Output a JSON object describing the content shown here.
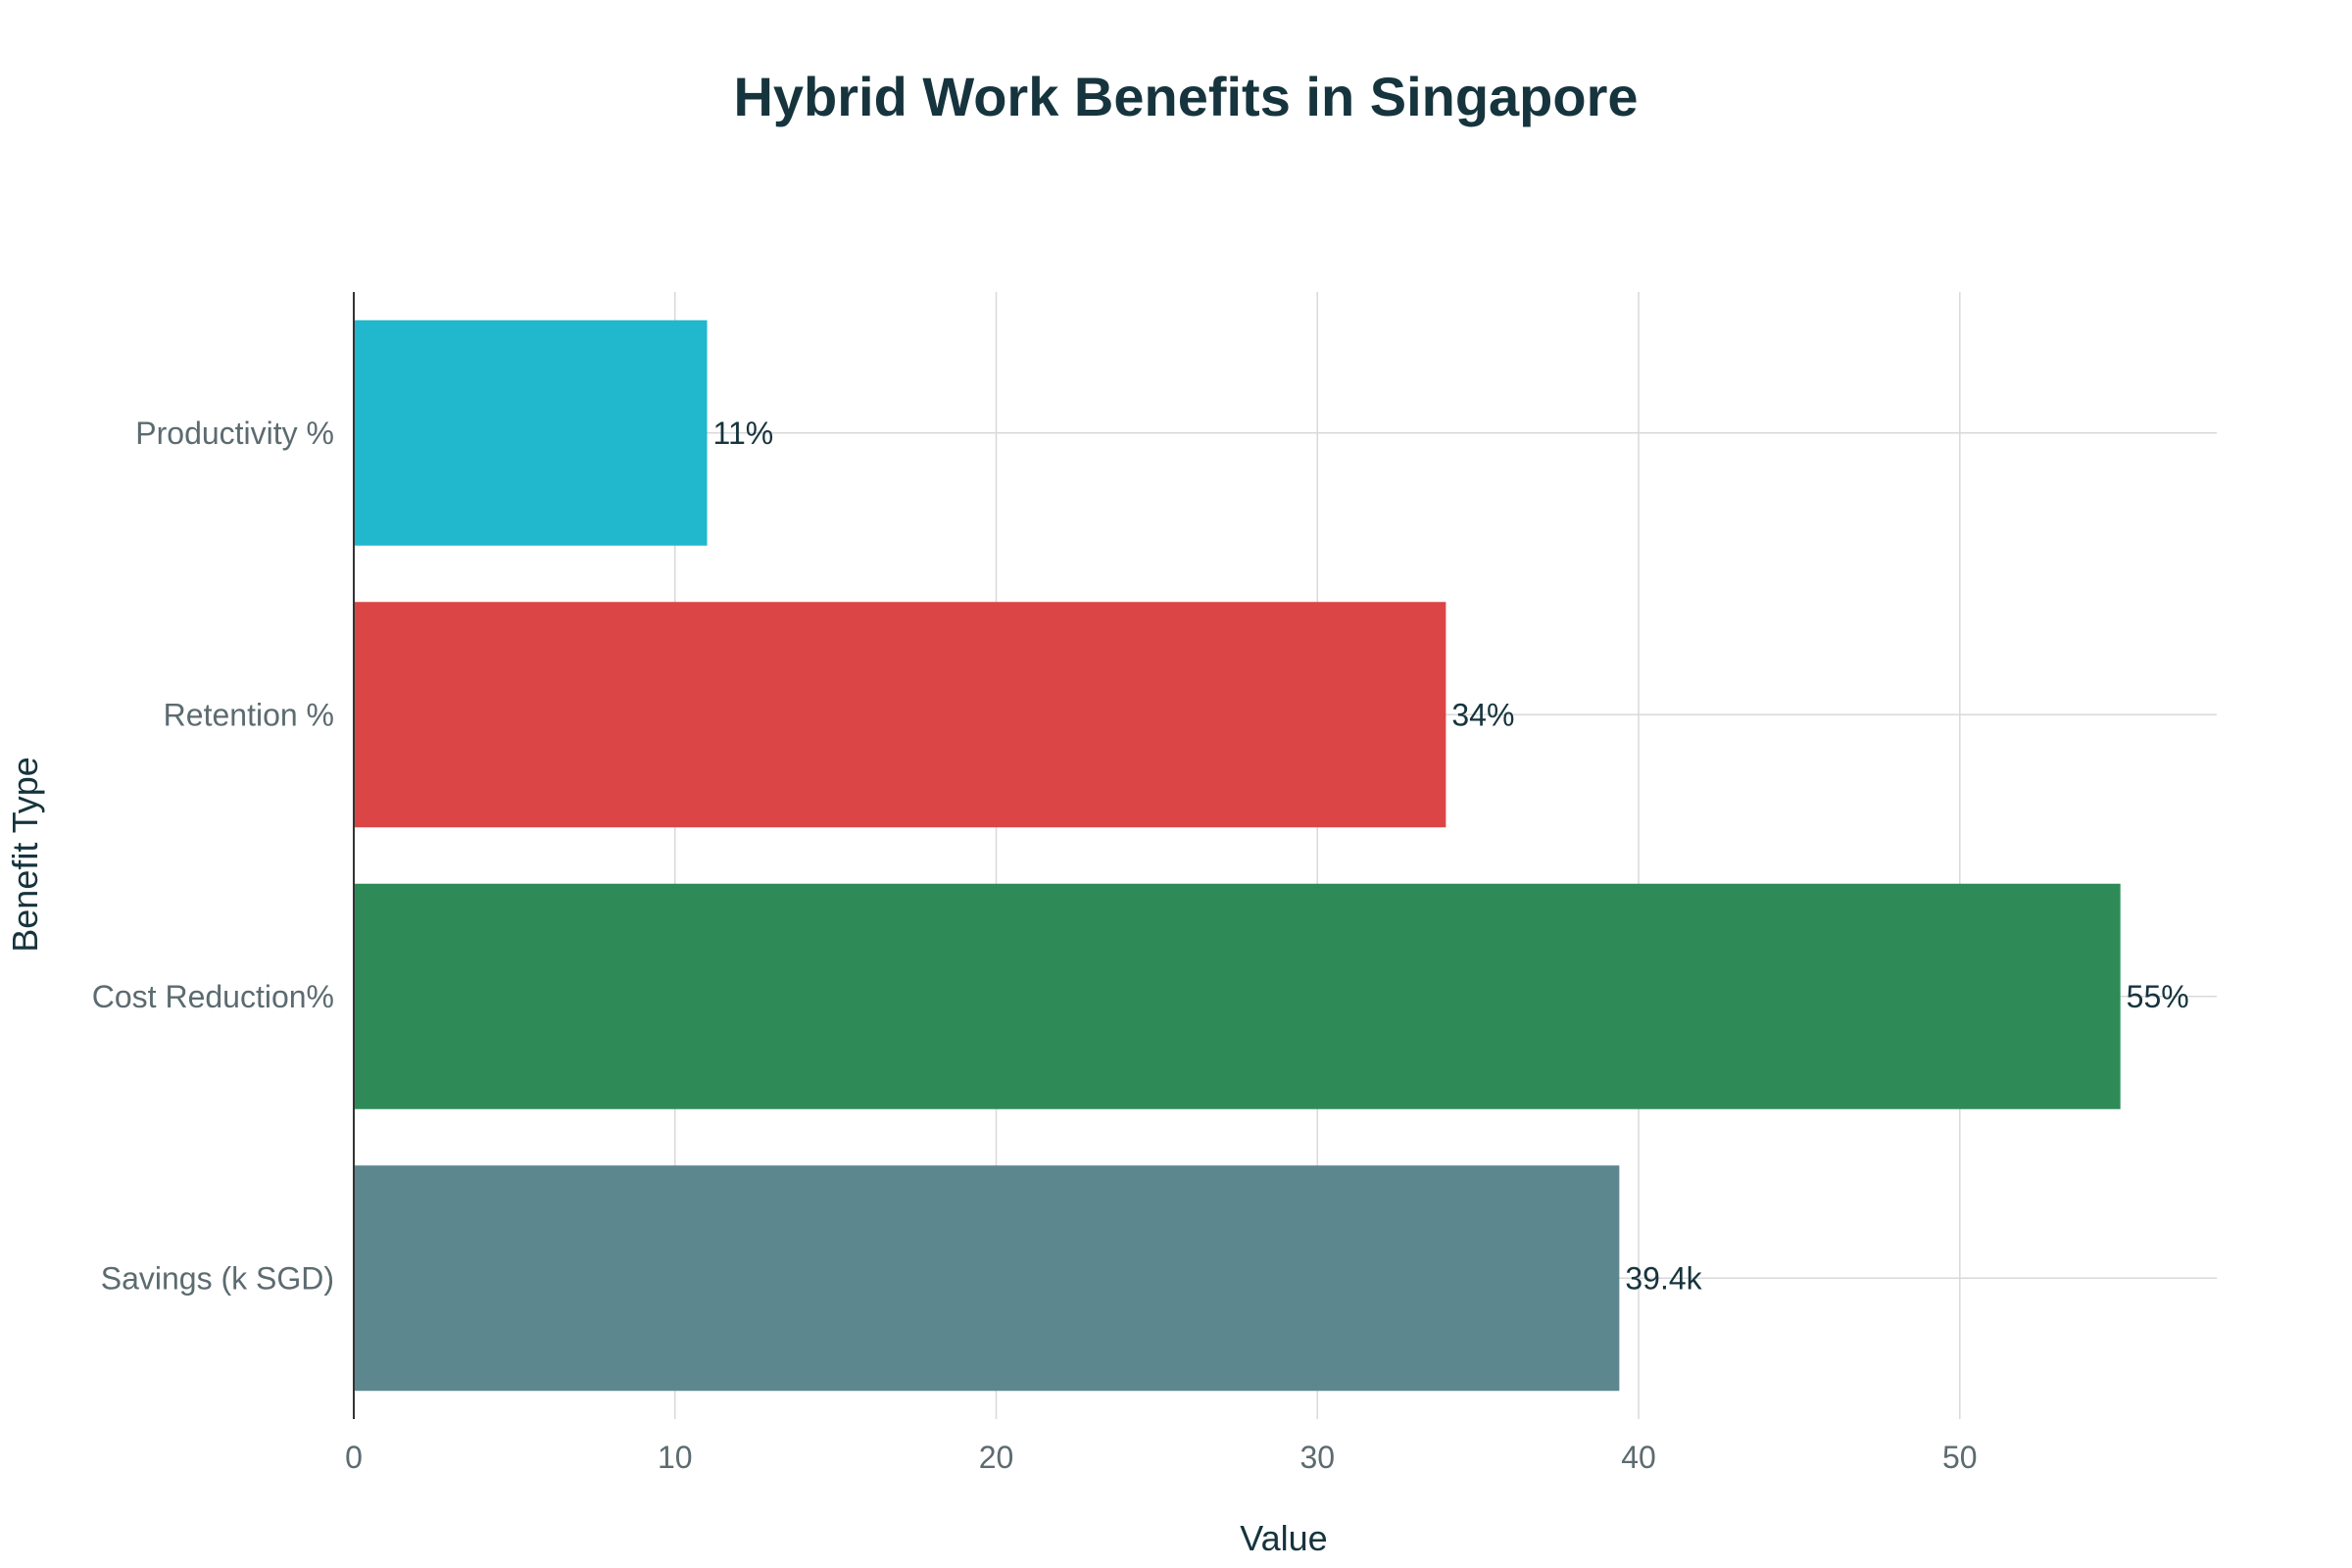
{
  "chart_data": {
    "type": "bar",
    "orientation": "horizontal",
    "title": "Hybrid Work Benefits in Singapore",
    "xlabel": "Value",
    "ylabel": "Benefit Type",
    "categories": [
      "Productivity %",
      "Retention %",
      "Cost Reduction%",
      "Savings (k SGD)"
    ],
    "values": [
      11,
      34,
      55,
      39.4
    ],
    "data_labels": [
      "11%",
      "34%",
      "55%",
      "39.4k"
    ],
    "colors": [
      "#21b8cd",
      "#db4545",
      "#2e8b57",
      "#5d878f"
    ],
    "xlim": [
      0,
      58
    ],
    "xticks": [
      0,
      10,
      20,
      30,
      40,
      50
    ],
    "xtick_labels": [
      "0",
      "10",
      "20",
      "30",
      "40",
      "50"
    ],
    "grid": true,
    "legend": "none"
  }
}
